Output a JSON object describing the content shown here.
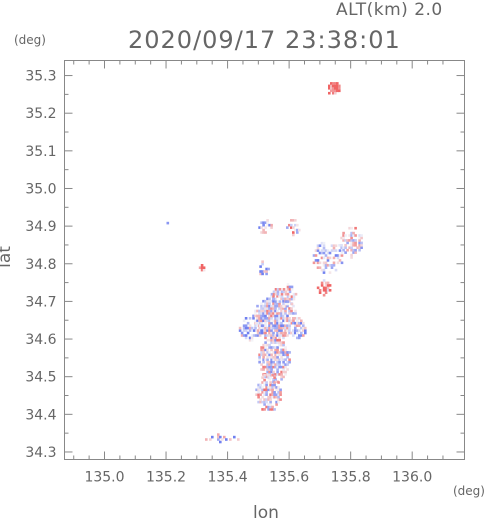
{
  "header": {
    "altitude_label": "ALT(km)  2.0",
    "timestamp": "2020/09/17 23:38:01"
  },
  "chart_data": {
    "type": "heatmap",
    "title": "2020/09/17 23:38:01",
    "subtitle": "ALT(km)  2.0",
    "xlabel": "lon",
    "ylabel": "lat",
    "x_unit": "(deg)",
    "y_unit": "(deg)",
    "xlim": [
      134.87,
      136.17
    ],
    "ylim": [
      34.28,
      35.34
    ],
    "x_ticks": [
      135.0,
      135.2,
      135.4,
      135.6,
      135.8,
      136.0
    ],
    "x_tick_labels": [
      "135.0",
      "135.2",
      "135.4",
      "135.6",
      "135.8",
      "136.0"
    ],
    "y_ticks": [
      34.3,
      34.4,
      34.5,
      34.6,
      34.7,
      34.8,
      34.9,
      35.0,
      35.1,
      35.2,
      35.3
    ],
    "y_tick_labels": [
      "34.3",
      "34.4",
      "34.5",
      "34.6",
      "34.7",
      "34.8",
      "34.9",
      "35.0",
      "35.1",
      "35.2",
      "35.3"
    ],
    "grid": false,
    "colormap": {
      "negative": "#6f7ff0",
      "neutral": "#f4f4f8",
      "positive": "#f06464"
    },
    "clusters": [
      {
        "lon": 135.74,
        "lat": 35.27,
        "dlon": 0.02,
        "dlat": 0.02,
        "bias": 0.9,
        "density": 1.0
      },
      {
        "lon": 135.55,
        "lat": 34.66,
        "dlon": 0.07,
        "dlat": 0.06,
        "bias": -0.1,
        "density": 0.9
      },
      {
        "lon": 135.55,
        "lat": 34.55,
        "dlon": 0.05,
        "dlat": 0.06,
        "bias": 0.0,
        "density": 0.85
      },
      {
        "lon": 135.53,
        "lat": 34.46,
        "dlon": 0.04,
        "dlat": 0.05,
        "bias": 0.1,
        "density": 0.75
      },
      {
        "lon": 135.47,
        "lat": 34.63,
        "dlon": 0.04,
        "dlat": 0.03,
        "bias": -0.4,
        "density": 0.6
      },
      {
        "lon": 135.62,
        "lat": 34.63,
        "dlon": 0.03,
        "dlat": 0.03,
        "bias": -0.3,
        "density": 0.6
      },
      {
        "lon": 135.58,
        "lat": 34.72,
        "dlon": 0.04,
        "dlat": 0.03,
        "bias": 0.1,
        "density": 0.6
      },
      {
        "lon": 135.72,
        "lat": 34.82,
        "dlon": 0.05,
        "dlat": 0.04,
        "bias": -0.2,
        "density": 0.55
      },
      {
        "lon": 135.8,
        "lat": 34.86,
        "dlon": 0.04,
        "dlat": 0.04,
        "bias": 0.0,
        "density": 0.55
      },
      {
        "lon": 135.71,
        "lat": 34.74,
        "dlon": 0.02,
        "dlat": 0.02,
        "bias": 0.7,
        "density": 0.7
      },
      {
        "lon": 135.52,
        "lat": 34.9,
        "dlon": 0.02,
        "dlat": 0.02,
        "bias": -0.2,
        "density": 0.6
      },
      {
        "lon": 135.61,
        "lat": 34.9,
        "dlon": 0.02,
        "dlat": 0.02,
        "bias": 0.2,
        "density": 0.5
      },
      {
        "lon": 135.52,
        "lat": 34.79,
        "dlon": 0.03,
        "dlat": 0.02,
        "bias": -0.5,
        "density": 0.35
      },
      {
        "lon": 135.38,
        "lat": 34.34,
        "dlon": 0.06,
        "dlat": 0.01,
        "bias": -0.3,
        "density": 0.35
      },
      {
        "lon": 135.31,
        "lat": 34.79,
        "dlon": 0.01,
        "dlat": 0.01,
        "bias": 0.5,
        "density": 0.6
      },
      {
        "lon": 135.2,
        "lat": 34.91,
        "dlon": 0.005,
        "dlat": 0.005,
        "bias": -0.6,
        "density": 0.8
      }
    ]
  }
}
